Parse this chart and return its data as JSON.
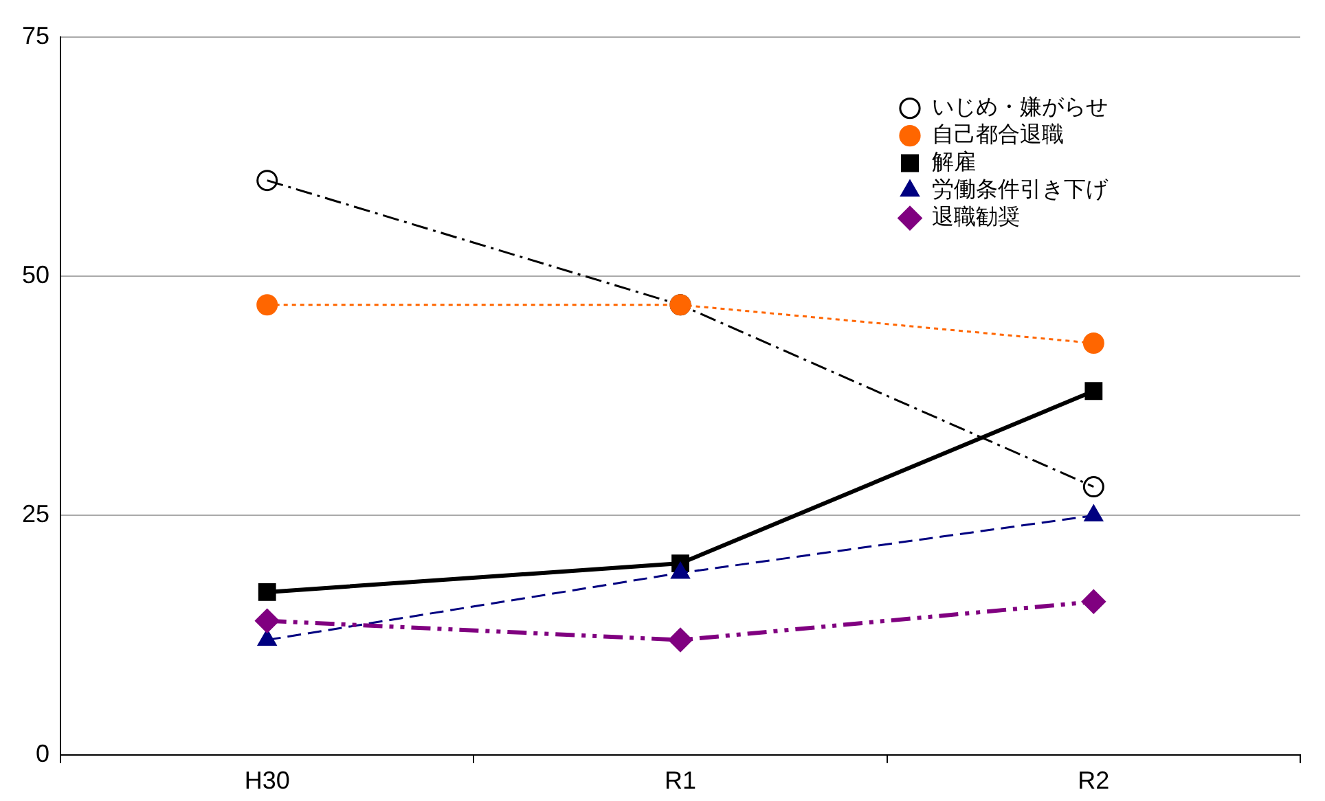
{
  "chart_data": {
    "type": "line",
    "categories": [
      "H30",
      "R1",
      "R2"
    ],
    "series": [
      {
        "name": "いじめ・嫌がらせ",
        "color": "#000000",
        "values": [
          60,
          47,
          28
        ],
        "marker": "circle",
        "line_style": "dashdot"
      },
      {
        "name": "自己都合退職",
        "color": "#ff6600",
        "values": [
          47,
          47,
          43
        ],
        "marker": "circle",
        "line_style": "dotted"
      },
      {
        "name": "解雇",
        "color": "#000000",
        "values": [
          17,
          20,
          38
        ],
        "marker": "square",
        "line_style": "solid"
      },
      {
        "name": "労働条件引き下げ",
        "color": "#000080",
        "values": [
          12,
          19,
          25
        ],
        "marker": "triangle",
        "line_style": "dashed"
      },
      {
        "name": "退職勧奨",
        "color": "#800080",
        "values": [
          14,
          12,
          16
        ],
        "marker": "diamond",
        "line_style": "dashdotdot"
      }
    ],
    "ylim": [
      0,
      75
    ],
    "yticks": [
      0,
      25,
      50,
      75
    ],
    "grid": "y",
    "legend": "top right"
  }
}
